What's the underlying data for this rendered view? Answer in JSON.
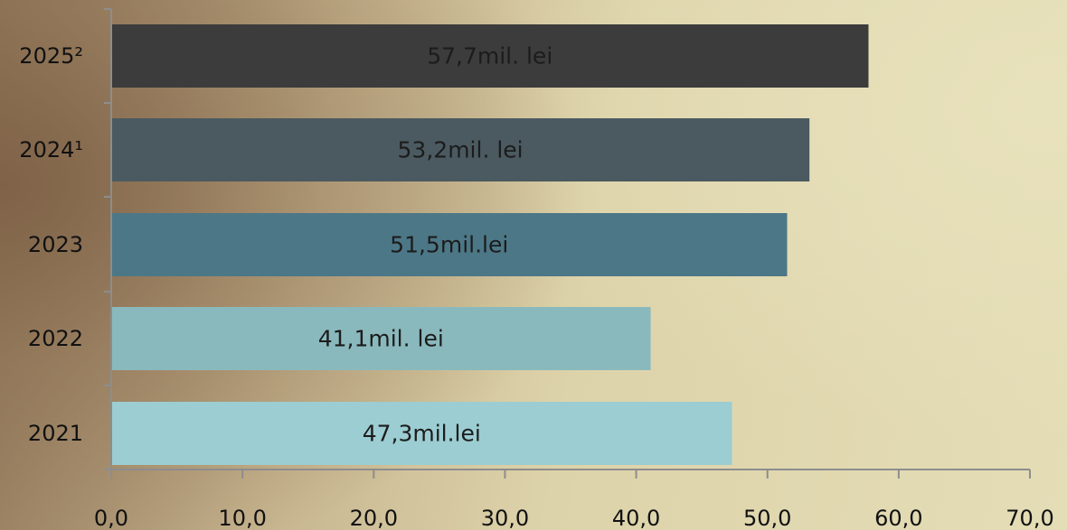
{
  "chart_data": {
    "type": "bar",
    "orientation": "horizontal",
    "categories": [
      "2025²",
      "2024¹",
      "2023",
      "2022",
      "2021"
    ],
    "values": [
      57.7,
      53.2,
      51.5,
      41.1,
      47.3
    ],
    "data_labels": [
      "57,7mil. lei",
      "53,2mil. lei",
      "51,5mil.lei",
      "41,1mil. lei",
      "47,3mil.lei"
    ],
    "bar_colors": [
      "#3c3c3c",
      "#4b5a61",
      "#4c7787",
      "#8ab9bd",
      "#9ccdd2"
    ],
    "xlim": [
      0,
      70
    ],
    "x_ticks": [
      0,
      10,
      20,
      30,
      40,
      50,
      60,
      70
    ],
    "x_tick_labels": [
      "0,0",
      "10,0",
      "20,0",
      "30,0",
      "40,0",
      "50,0",
      "60,0",
      "70,0"
    ],
    "title": "",
    "xlabel": "",
    "ylabel": "",
    "grid": false,
    "legend": "none",
    "axis_color": "#8d8d8d"
  }
}
